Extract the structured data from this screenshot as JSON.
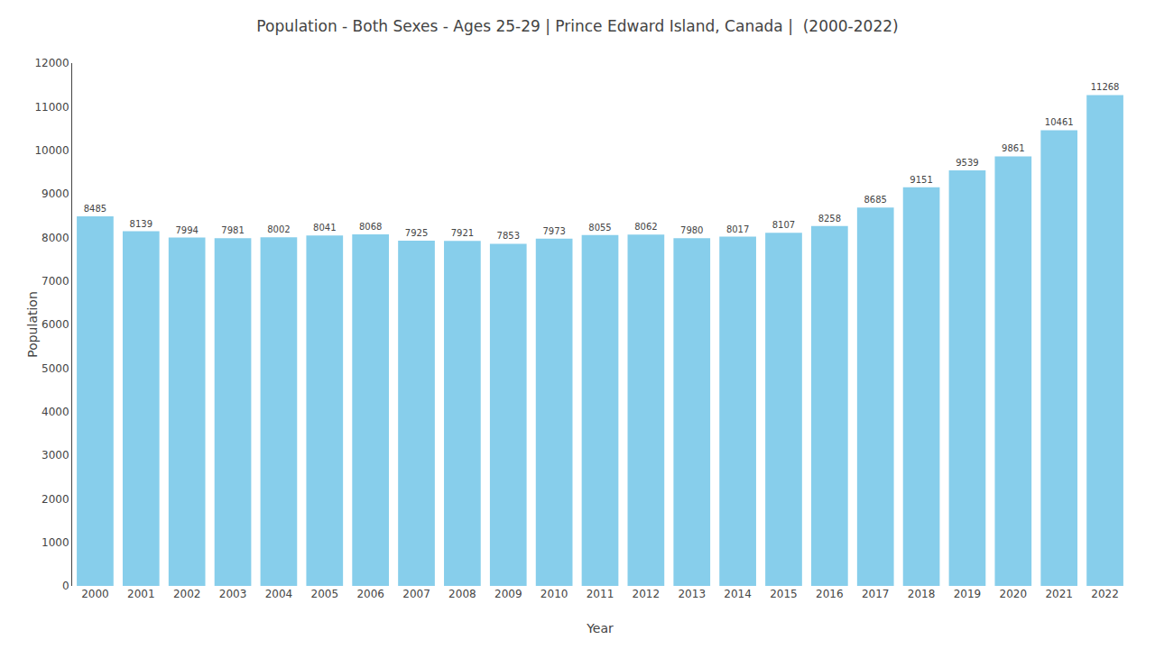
{
  "chart_data": {
    "type": "bar",
    "title": "Population - Both Sexes - Ages 25-29 | Prince Edward Island, Canada |  (2000-2022)",
    "x_label": "Year",
    "y_label": "Population",
    "categories": [
      "2000",
      "2001",
      "2002",
      "2003",
      "2004",
      "2005",
      "2006",
      "2007",
      "2008",
      "2009",
      "2010",
      "2011",
      "2012",
      "2013",
      "2014",
      "2015",
      "2016",
      "2017",
      "2018",
      "2019",
      "2020",
      "2021",
      "2022"
    ],
    "values": [
      8485,
      8139,
      7994,
      7981,
      8002,
      8041,
      8068,
      7925,
      7921,
      7853,
      7973,
      8055,
      8062,
      7980,
      8017,
      8107,
      8258,
      8685,
      9151,
      9539,
      9861,
      10461,
      11268
    ],
    "color": "#87CEEB",
    "ylim": [
      0,
      12000
    ],
    "yticks": [
      0,
      1000,
      2000,
      3000,
      4000,
      5000,
      6000,
      7000,
      8000,
      9000,
      10000,
      11000,
      12000
    ],
    "grid": false,
    "data_labels": true
  }
}
